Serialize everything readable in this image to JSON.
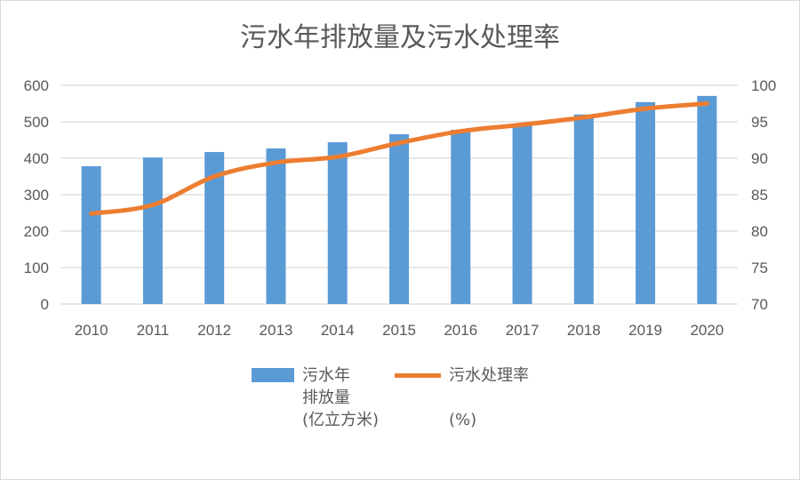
{
  "chart_data": {
    "type": "bar+line",
    "title": "污水年排放量及污水处理率",
    "categories": [
      "2010",
      "2011",
      "2012",
      "2013",
      "2014",
      "2015",
      "2016",
      "2017",
      "2018",
      "2019",
      "2020"
    ],
    "series": [
      {
        "name": "污水年\n排放量\n(亿立方米)",
        "type": "bar",
        "axis": "left",
        "color": "#5b9bd5",
        "values": [
          378,
          402,
          417,
          427,
          444,
          466,
          478,
          493,
          520,
          554,
          571
        ]
      },
      {
        "name": "污水处理率\n\n(%)",
        "type": "line",
        "axis": "right",
        "color": "#ed7d31",
        "values": [
          82.4,
          83.6,
          87.5,
          89.4,
          90.2,
          92.1,
          93.7,
          94.6,
          95.6,
          96.8,
          97.5
        ]
      }
    ],
    "y_left": {
      "min": 0,
      "max": 600,
      "ticks": [
        "0",
        "100",
        "200",
        "300",
        "400",
        "500",
        "600"
      ]
    },
    "y_right": {
      "min": 70,
      "max": 100,
      "ticks": [
        "70",
        "75",
        "80",
        "85",
        "90",
        "95",
        "100"
      ]
    },
    "grid": true,
    "legend": "bottom"
  }
}
